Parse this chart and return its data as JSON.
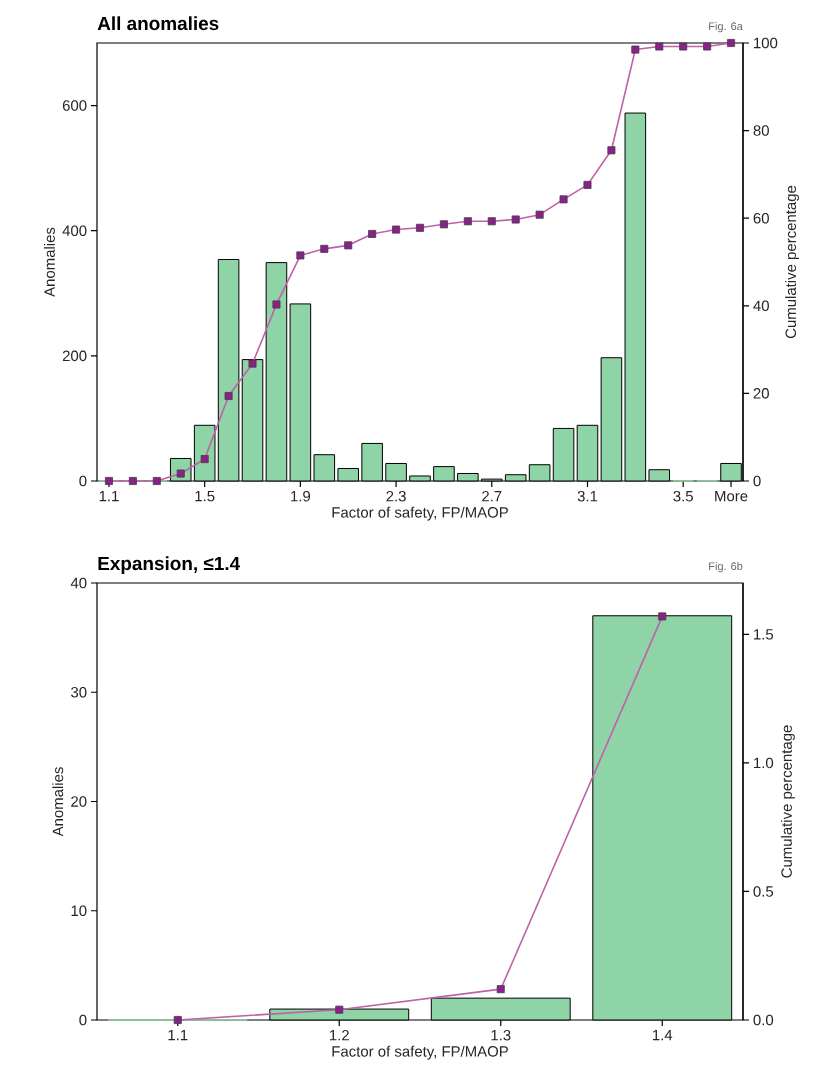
{
  "chart_data": [
    {
      "type": "bar",
      "title": "All anomalies",
      "annotations": [
        "Fig. 6a"
      ],
      "xlabel": "Factor of safety, FP/MAOP",
      "ylabel": "Anomalies",
      "y2label": "Cumulative percentage",
      "categories": [
        "1.1",
        null,
        null,
        null,
        "1.5",
        null,
        null,
        null,
        "1.9",
        null,
        null,
        null,
        "2.3",
        null,
        null,
        null,
        "2.7",
        null,
        null,
        null,
        "3.1",
        null,
        null,
        null,
        "3.5",
        null,
        "More"
      ],
      "series": [
        {
          "color": "#8fd4a6",
          "values": [
            0,
            0,
            0,
            36,
            89,
            354,
            194,
            349,
            283,
            42,
            20,
            60,
            28,
            8,
            23,
            12,
            3,
            10,
            26,
            84,
            89,
            197,
            588,
            18,
            0,
            0,
            28
          ]
        },
        {
          "type": "line",
          "axis": "y2",
          "color": "#c060a8",
          "values": [
            0,
            0,
            0,
            1.7,
            5.0,
            19.4,
            26.8,
            40.3,
            51.5,
            53.0,
            53.8,
            56.4,
            57.4,
            57.8,
            58.6,
            59.3,
            59.3,
            59.7,
            60.8,
            64.3,
            67.6,
            75.5,
            98.5,
            99.2,
            99.2,
            99.2,
            100
          ]
        }
      ],
      "ylim": [
        0,
        700
      ],
      "yticks": [
        0,
        200,
        400,
        600
      ],
      "y2lim": [
        0,
        100
      ],
      "y2ticks": [
        0,
        20,
        40,
        60,
        80,
        100
      ],
      "marker": "square"
    },
    {
      "type": "bar",
      "title": "Expansion, ≤1.4",
      "annotations": [
        "Fig. 6b"
      ],
      "xlabel": "Factor of safety, FP/MAOP",
      "ylabel": "Anomalies",
      "y2label": "Cumulative percentage",
      "categories": [
        "1.1",
        "1.2",
        "1.3",
        "1.4"
      ],
      "series": [
        {
          "color": "#8fd4a6",
          "values": [
            0,
            1,
            2,
            37
          ]
        },
        {
          "type": "line",
          "axis": "y2",
          "color": "#c060a8",
          "values": [
            0,
            0.04,
            0.12,
            1.57
          ]
        }
      ],
      "ylim": [
        0,
        40
      ],
      "yticks": [
        0,
        10,
        20,
        30,
        40
      ],
      "y2lim": [
        0,
        1.7
      ],
      "y2ticks": [
        {
          "value": 0,
          "label": "0.0"
        },
        {
          "value": 0.5,
          "label": "0.5"
        },
        {
          "value": 1.0,
          "label": "1.0"
        },
        {
          "value": 1.5,
          "label": "1.5"
        }
      ],
      "marker": "square"
    }
  ]
}
